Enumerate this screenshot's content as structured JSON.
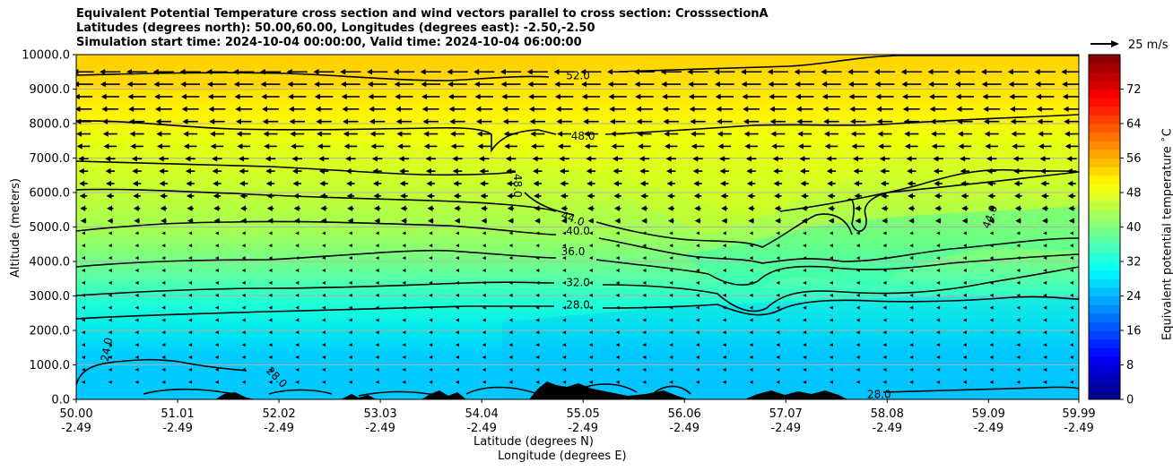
{
  "title_lines": [
    "Equivalent Potential Temperature cross section and wind vectors parallel to cross section: CrosssectionA",
    "Latitudes (degrees north): 50.00,60.00, Longitudes (degrees east): -2.50,-2.50",
    "Simulation start time: 2024-10-04 00:00:00, Valid time: 2024-10-04 06:00:00"
  ],
  "chart_data": {
    "type": "contour_cross_section",
    "title": "Equivalent Potential Temperature cross section and wind vectors parallel to cross section: CrosssectionA",
    "ylabel": "Altitude (meters)",
    "xlabel_line1": "Latitude (degrees N)",
    "xlabel_line2": "Longitude (degrees E)",
    "ylim": [
      0,
      10000
    ],
    "yticks": [
      "0.0",
      "1000.0",
      "2000.0",
      "3000.0",
      "4000.0",
      "5000.0",
      "6000.0",
      "7000.0",
      "8000.0",
      "9000.0",
      "10000.0"
    ],
    "xticks_lat": [
      "50.00",
      "51.01",
      "52.02",
      "53.03",
      "54.04",
      "55.05",
      "56.06",
      "57.07",
      "58.08",
      "59.09",
      "59.99"
    ],
    "xticks_lon": [
      "-2.49",
      "-2.49",
      "-2.49",
      "-2.49",
      "-2.49",
      "-2.49",
      "-2.49",
      "-2.49",
      "-2.49",
      "-2.49",
      "-2.49"
    ],
    "grid": "horizontal",
    "colorbar": {
      "label": "Equivalent potential temperature $^\\circ$C",
      "range": [
        0,
        80
      ],
      "ticks": [
        "0",
        "8",
        "16",
        "24",
        "32",
        "40",
        "48",
        "56",
        "64",
        "72"
      ],
      "colormap": "jet"
    },
    "contour_levels": [
      24,
      28,
      32,
      36,
      40,
      44,
      48,
      52
    ],
    "contour_labels": [
      {
        "text": "52.0",
        "lat": 55.0,
        "alt": 9400
      },
      {
        "text": "48.0",
        "lat": 55.05,
        "alt": 7650
      },
      {
        "text": "48.0",
        "lat": 54.4,
        "alt": 6200
      },
      {
        "text": "44.0",
        "lat": 54.95,
        "alt": 5250
      },
      {
        "text": "40.0",
        "lat": 55.0,
        "alt": 4900
      },
      {
        "text": "36.0",
        "lat": 54.95,
        "alt": 4300
      },
      {
        "text": "32.0",
        "lat": 55.0,
        "alt": 3400
      },
      {
        "text": "28.0",
        "lat": 55.0,
        "alt": 2750
      },
      {
        "text": "44.0",
        "lat": 59.1,
        "alt": 5300
      },
      {
        "text": "24.0",
        "lat": 50.3,
        "alt": 1450
      },
      {
        "text": "28.0",
        "lat": 52.0,
        "alt": 650
      },
      {
        "text": "28.0",
        "lat": 58.0,
        "alt": 150
      }
    ],
    "wind_reference": {
      "label": "25 m/s",
      "speed": 25
    },
    "wind_direction": "southward (negative meridional) at most levels, strongest above 7000 m"
  }
}
